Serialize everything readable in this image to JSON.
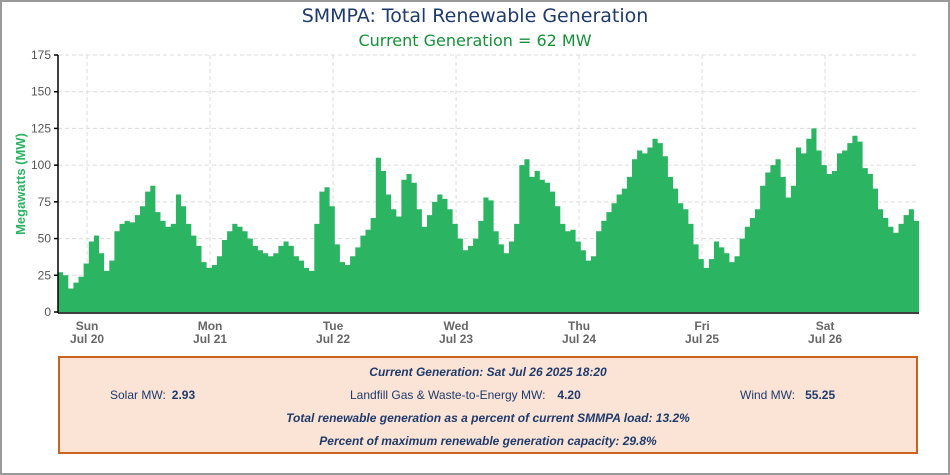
{
  "header": {
    "title": "SMMPA: Total Renewable Generation",
    "subtitle": "Current Generation =  62 MW"
  },
  "chart_data": {
    "type": "area",
    "title": "SMMPA: Total Renewable Generation",
    "subtitle": "Current Generation =  62 MW",
    "xlabel": "",
    "ylabel": "Megawatts (MW)",
    "ylim": [
      0,
      175
    ],
    "yticks": [
      0,
      25,
      50,
      75,
      100,
      125,
      150,
      175
    ],
    "grid": true,
    "legend": "none",
    "color": "#2bb462",
    "x_start": "Sat Jul 19 2025 18:20",
    "x_end": "Sat Jul 26 2025 18:20",
    "x_interval": "1 hour",
    "x_ticks": [
      {
        "day": "Sun",
        "date": "Jul 20",
        "hours_from_start": 5.67
      },
      {
        "day": "Mon",
        "date": "Jul 21",
        "hours_from_start": 29.67
      },
      {
        "day": "Tue",
        "date": "Jul 22",
        "hours_from_start": 53.67
      },
      {
        "day": "Wed",
        "date": "Jul 23",
        "hours_from_start": 77.67
      },
      {
        "day": "Thu",
        "date": "Jul 24",
        "hours_from_start": 101.67
      },
      {
        "day": "Fri",
        "date": "Jul 25",
        "hours_from_start": 125.67
      },
      {
        "day": "Sat",
        "date": "Jul 26",
        "hours_from_start": 149.67
      }
    ],
    "series": [
      {
        "name": "Total Renewable MW",
        "values": [
          27,
          25,
          16,
          20,
          24,
          33,
          48,
          52,
          40,
          28,
          35,
          55,
          60,
          62,
          61,
          66,
          72,
          82,
          86,
          68,
          62,
          58,
          60,
          80,
          72,
          60,
          52,
          45,
          34,
          30,
          32,
          38,
          49,
          55,
          60,
          58,
          55,
          50,
          45,
          42,
          40,
          38,
          40,
          45,
          48,
          45,
          38,
          35,
          30,
          28,
          60,
          82,
          85,
          72,
          46,
          34,
          32,
          38,
          44,
          52,
          56,
          64,
          105,
          96,
          80,
          70,
          65,
          90,
          94,
          88,
          70,
          58,
          66,
          75,
          80,
          77,
          70,
          60,
          50,
          42,
          45,
          50,
          62,
          78,
          76,
          55,
          46,
          40,
          48,
          60,
          100,
          104,
          92,
          96,
          90,
          88,
          82,
          72,
          60,
          55,
          56,
          48,
          42,
          35,
          38,
          55,
          62,
          68,
          74,
          80,
          84,
          92,
          104,
          110,
          108,
          112,
          118,
          115,
          106,
          92,
          84,
          74,
          70,
          60,
          46,
          36,
          30,
          36,
          48,
          44,
          40,
          34,
          38,
          50,
          58,
          64,
          70,
          86,
          95,
          100,
          104,
          92,
          78,
          86,
          112,
          108,
          118,
          125,
          110,
          100,
          94,
          96,
          108,
          110,
          115,
          120,
          116,
          98,
          94,
          84,
          70,
          64,
          58,
          54,
          60,
          66,
          70,
          62
        ]
      }
    ]
  },
  "info_panel": {
    "current_label": "Current Generation: Sat Jul 26 2025 18:20",
    "solar_label": "Solar MW:",
    "solar_value": "2.93",
    "landfill_label": "Landfill Gas & Waste-to-Energy MW:",
    "landfill_value": "4.20",
    "wind_label": "Wind MW:",
    "wind_value": "55.25",
    "load_pct_text": "Total renewable generation as a percent of current SMMPA load: 13.2%",
    "capacity_pct_text": "Percent of maximum renewable generation capacity: 29.8%"
  }
}
